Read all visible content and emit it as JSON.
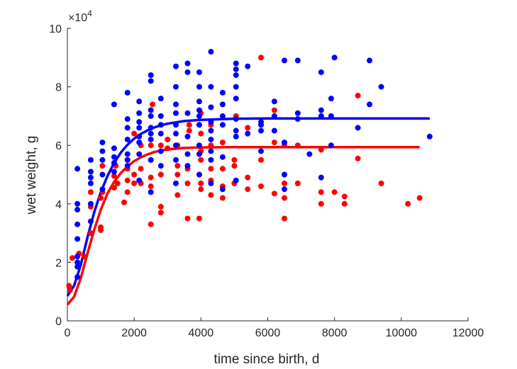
{
  "chart_data": {
    "type": "scatter",
    "xlabel": "time since birth, d",
    "ylabel": "wet weight, g",
    "xlim": [
      0,
      12000
    ],
    "ylim": [
      0,
      100000
    ],
    "x_ticks": [
      0,
      2000,
      4000,
      6000,
      8000,
      10000,
      12000
    ],
    "x_tick_labels": [
      "0",
      "2000",
      "4000",
      "6000",
      "8000",
      "10000",
      "12000"
    ],
    "y_ticks": [
      0,
      20000,
      40000,
      60000,
      80000,
      100000
    ],
    "y_tick_labels": [
      "0",
      "2",
      "4",
      "6",
      "8",
      "10"
    ],
    "y_exponent_label": "×10",
    "y_exponent_power": "4",
    "grid": false,
    "series": [
      {
        "color": "#ff0000",
        "points": [
          [
            50,
            12000
          ],
          [
            80,
            10500
          ],
          [
            150,
            21500
          ],
          [
            350,
            23000
          ],
          [
            500,
            22000
          ],
          [
            700,
            30000
          ],
          [
            700,
            39000
          ],
          [
            700,
            44000
          ],
          [
            1000,
            31000
          ],
          [
            1000,
            32000
          ],
          [
            1000,
            42000
          ],
          [
            1050,
            44000
          ],
          [
            1050,
            53000
          ],
          [
            1400,
            45500
          ],
          [
            1400,
            49500
          ],
          [
            1450,
            53000
          ],
          [
            1500,
            47000
          ],
          [
            1700,
            40500
          ],
          [
            1800,
            44000
          ],
          [
            1800,
            48000
          ],
          [
            1800,
            52000
          ],
          [
            1800,
            55000
          ],
          [
            2000,
            47000
          ],
          [
            2000,
            50000
          ],
          [
            2000,
            64000
          ],
          [
            2200,
            47000
          ],
          [
            2200,
            52000
          ],
          [
            2200,
            60000
          ],
          [
            2500,
            33000
          ],
          [
            2500,
            46000
          ],
          [
            2500,
            49000
          ],
          [
            2500,
            55000
          ],
          [
            2500,
            60000
          ],
          [
            2550,
            74000
          ],
          [
            2800,
            37000
          ],
          [
            2800,
            39000
          ],
          [
            2800,
            50000
          ],
          [
            2800,
            60000
          ],
          [
            3000,
            59000
          ],
          [
            3000,
            62000
          ],
          [
            3300,
            43000
          ],
          [
            3300,
            50000
          ],
          [
            3300,
            53000
          ],
          [
            3300,
            60000
          ],
          [
            3600,
            35000
          ],
          [
            3600,
            47000
          ],
          [
            3600,
            52000
          ],
          [
            3650,
            65000
          ],
          [
            3650,
            67000
          ],
          [
            3950,
            35000
          ],
          [
            4000,
            45000
          ],
          [
            4000,
            47000
          ],
          [
            4000,
            55000
          ],
          [
            4000,
            58000
          ],
          [
            4000,
            64000
          ],
          [
            4000,
            71000
          ],
          [
            4300,
            43000
          ],
          [
            4300,
            48000
          ],
          [
            4300,
            52000
          ],
          [
            4300,
            60000
          ],
          [
            4300,
            67000
          ],
          [
            4650,
            42000
          ],
          [
            4650,
            46000
          ],
          [
            4650,
            52000
          ],
          [
            4650,
            61000
          ],
          [
            5000,
            47000
          ],
          [
            5000,
            53000
          ],
          [
            5000,
            55000
          ],
          [
            5050,
            70000
          ],
          [
            5400,
            45000
          ],
          [
            5400,
            49000
          ],
          [
            5400,
            66000
          ],
          [
            5800,
            46000
          ],
          [
            5800,
            55000
          ],
          [
            5800,
            90000
          ],
          [
            6200,
            43500
          ],
          [
            6200,
            61000
          ],
          [
            6200,
            72000
          ],
          [
            6500,
            35000
          ],
          [
            6500,
            42000
          ],
          [
            6500,
            47000
          ],
          [
            6500,
            60000
          ],
          [
            6900,
            47000
          ],
          [
            6900,
            60000
          ],
          [
            7600,
            40000
          ],
          [
            7600,
            44000
          ],
          [
            7600,
            58500
          ],
          [
            8000,
            44000
          ],
          [
            8300,
            40000
          ],
          [
            8300,
            42500
          ],
          [
            8700,
            55500
          ],
          [
            8700,
            77000
          ],
          [
            9400,
            47000
          ],
          [
            10200,
            40000
          ],
          [
            10550,
            42000
          ]
        ]
      },
      {
        "color": "#0000ff",
        "points": [
          [
            300,
            15000
          ],
          [
            300,
            18500
          ],
          [
            300,
            20000
          ],
          [
            300,
            22000
          ],
          [
            300,
            28000
          ],
          [
            300,
            33000
          ],
          [
            300,
            38000
          ],
          [
            300,
            40000
          ],
          [
            300,
            52000
          ],
          [
            700,
            34000
          ],
          [
            700,
            40000
          ],
          [
            700,
            47000
          ],
          [
            700,
            49000
          ],
          [
            700,
            51000
          ],
          [
            700,
            55000
          ],
          [
            1050,
            45000
          ],
          [
            1050,
            50000
          ],
          [
            1050,
            55000
          ],
          [
            1050,
            58000
          ],
          [
            1050,
            61000
          ],
          [
            1400,
            51000
          ],
          [
            1400,
            54000
          ],
          [
            1400,
            56000
          ],
          [
            1400,
            59000
          ],
          [
            1400,
            74000
          ],
          [
            1800,
            53000
          ],
          [
            1800,
            55000
          ],
          [
            1800,
            57000
          ],
          [
            1800,
            62000
          ],
          [
            1800,
            66000
          ],
          [
            1800,
            69000
          ],
          [
            1800,
            78000
          ],
          [
            2150,
            48000
          ],
          [
            2150,
            57000
          ],
          [
            2150,
            61000
          ],
          [
            2150,
            63000
          ],
          [
            2150,
            66000
          ],
          [
            2150,
            68000
          ],
          [
            2150,
            71000
          ],
          [
            2150,
            75000
          ],
          [
            2500,
            44000
          ],
          [
            2500,
            55000
          ],
          [
            2500,
            62000
          ],
          [
            2500,
            64000
          ],
          [
            2500,
            66000
          ],
          [
            2500,
            70000
          ],
          [
            2500,
            72000
          ],
          [
            2500,
            82000
          ],
          [
            2500,
            84000
          ],
          [
            2800,
            53000
          ],
          [
            2800,
            58000
          ],
          [
            2800,
            64000
          ],
          [
            2800,
            67000
          ],
          [
            2800,
            70000
          ],
          [
            2800,
            76000
          ],
          [
            3250,
            47000
          ],
          [
            3250,
            55000
          ],
          [
            3250,
            60000
          ],
          [
            3250,
            64000
          ],
          [
            3250,
            67000
          ],
          [
            3250,
            71000
          ],
          [
            3250,
            74000
          ],
          [
            3250,
            80000
          ],
          [
            3250,
            87000
          ],
          [
            3600,
            53000
          ],
          [
            3600,
            57000
          ],
          [
            3600,
            63000
          ],
          [
            3600,
            71000
          ],
          [
            3600,
            85000
          ],
          [
            3600,
            88000
          ],
          [
            3950,
            50000
          ],
          [
            3950,
            57000
          ],
          [
            3950,
            60000
          ],
          [
            3950,
            67000
          ],
          [
            3950,
            70000
          ],
          [
            3950,
            72000
          ],
          [
            3950,
            75000
          ],
          [
            3950,
            80000
          ],
          [
            3950,
            85000
          ],
          [
            4300,
            47000
          ],
          [
            4300,
            55000
          ],
          [
            4300,
            58000
          ],
          [
            4300,
            62000
          ],
          [
            4300,
            65000
          ],
          [
            4300,
            68000
          ],
          [
            4300,
            73000
          ],
          [
            4300,
            80000
          ],
          [
            4300,
            92000
          ],
          [
            4650,
            45000
          ],
          [
            4650,
            56000
          ],
          [
            4650,
            67000
          ],
          [
            4650,
            70000
          ],
          [
            4650,
            74000
          ],
          [
            4650,
            78000
          ],
          [
            5050,
            48000
          ],
          [
            5050,
            63000
          ],
          [
            5050,
            65000
          ],
          [
            5050,
            69000
          ],
          [
            5050,
            76000
          ],
          [
            5050,
            80000
          ],
          [
            5050,
            84000
          ],
          [
            5050,
            86000
          ],
          [
            5050,
            88000
          ],
          [
            5400,
            64000
          ],
          [
            5400,
            87000
          ],
          [
            5800,
            58000
          ],
          [
            5800,
            65000
          ],
          [
            5800,
            67000
          ],
          [
            5800,
            68000
          ],
          [
            6200,
            65000
          ],
          [
            6200,
            70000
          ],
          [
            6200,
            75000
          ],
          [
            6500,
            45000
          ],
          [
            6500,
            50000
          ],
          [
            6500,
            61000
          ],
          [
            6500,
            89000
          ],
          [
            6900,
            69000
          ],
          [
            6900,
            71000
          ],
          [
            6900,
            89000
          ],
          [
            7250,
            57000
          ],
          [
            7600,
            49000
          ],
          [
            7600,
            70000
          ],
          [
            7600,
            72000
          ],
          [
            7600,
            85000
          ],
          [
            7900,
            60000
          ],
          [
            7900,
            70000
          ],
          [
            7900,
            76000
          ],
          [
            8000,
            90000
          ],
          [
            8700,
            66000
          ],
          [
            9050,
            74000
          ],
          [
            9050,
            89000
          ],
          [
            9400,
            80000
          ],
          [
            10850,
            63000
          ]
        ]
      }
    ],
    "fit_curves": [
      {
        "color": "#ff0000",
        "x": [
          0,
          200,
          400,
          600,
          800,
          1000,
          1200,
          1400,
          1600,
          1800,
          2000,
          2200,
          2400,
          2600,
          2800,
          3000,
          3500,
          4000,
          5000,
          6000,
          7000,
          8000,
          9000,
          10000,
          10550
        ],
        "y": [
          5500,
          8200,
          14500,
          23000,
          31000,
          38000,
          43500,
          47500,
          50500,
          52800,
          54600,
          55900,
          56900,
          57700,
          58200,
          58600,
          59100,
          59300,
          59400,
          59400,
          59400,
          59400,
          59400,
          59400,
          59400
        ]
      },
      {
        "color": "#0000ff",
        "x": [
          0,
          200,
          400,
          600,
          800,
          1000,
          1200,
          1400,
          1600,
          1800,
          2000,
          2200,
          2400,
          2600,
          2800,
          3000,
          3500,
          4000,
          5000,
          6000,
          7000,
          8000,
          9000,
          10000,
          10850
        ],
        "y": [
          8500,
          12000,
          19000,
          28500,
          37000,
          44000,
          49500,
          54000,
          57500,
          60200,
          62300,
          63900,
          65100,
          66100,
          66800,
          67400,
          68300,
          68700,
          69100,
          69200,
          69200,
          69200,
          69200,
          69200,
          69200
        ]
      }
    ]
  }
}
